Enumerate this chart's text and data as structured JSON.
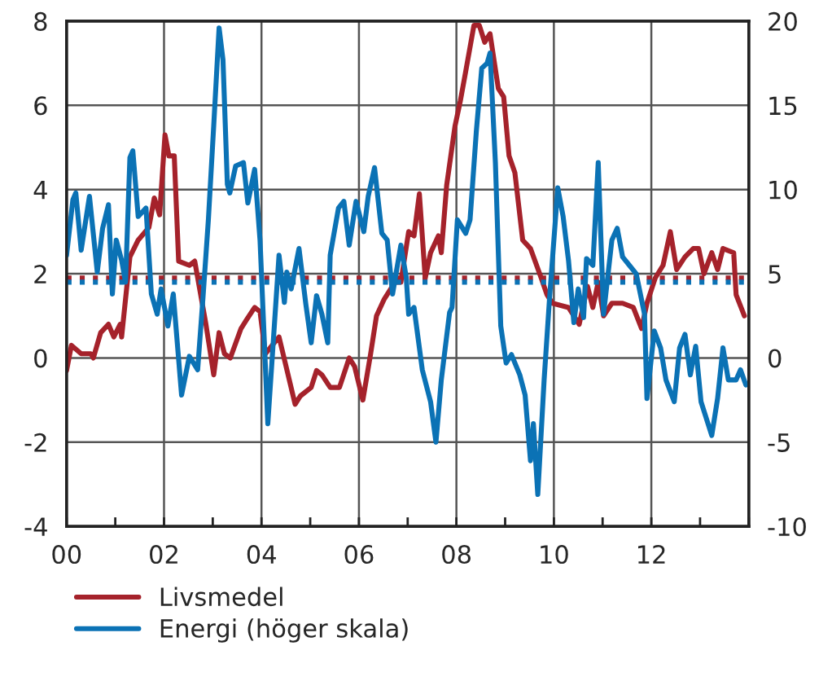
{
  "chart_data": {
    "type": "line",
    "series": [
      {
        "name": "Livsmedel",
        "color": "#a5222b",
        "x": [
          2000.0,
          2000.1,
          2000.3,
          2000.5,
          2000.55,
          2000.7,
          2000.86,
          2000.97,
          2001.1,
          2001.13,
          2001.3,
          2001.47,
          2001.69,
          2001.8,
          2001.91,
          2002.02,
          2002.1,
          2002.21,
          2002.3,
          2002.52,
          2002.63,
          2002.86,
          2003.02,
          2003.13,
          2003.24,
          2003.36,
          2003.58,
          2003.69,
          2003.86,
          2003.97,
          2004.08,
          2004.36,
          2004.69,
          2004.8,
          2005.02,
          2005.13,
          2005.24,
          2005.41,
          2005.6,
          2005.8,
          2005.91,
          2006.08,
          2006.24,
          2006.36,
          2006.52,
          2006.74,
          2006.86,
          2007.02,
          2007.13,
          2007.24,
          2007.36,
          2007.47,
          2007.63,
          2007.69,
          2007.8,
          2007.97,
          2008.08,
          2008.19,
          2008.36,
          2008.47,
          2008.58,
          2008.69,
          2008.86,
          2008.97,
          2009.08,
          2009.2,
          2009.36,
          2009.52,
          2009.74,
          2009.86,
          2009.97,
          2010.3,
          2010.52,
          2010.69,
          2010.8,
          2010.91,
          2011.02,
          2011.19,
          2011.41,
          2011.63,
          2011.8,
          2011.91,
          2012.08,
          2012.24,
          2012.39,
          2012.52,
          2012.69,
          2012.86,
          2012.97,
          2013.08,
          2013.24,
          2013.36,
          2013.47,
          2013.69,
          2013.74,
          2013.91
        ],
        "values": [
          -0.3,
          0.3,
          0.1,
          0.1,
          0,
          0.6,
          0.8,
          0.5,
          0.8,
          0.5,
          2.4,
          2.8,
          3.1,
          3.8,
          3.4,
          5.3,
          4.8,
          4.8,
          2.3,
          2.2,
          2.3,
          0.8,
          -0.4,
          0.6,
          0.1,
          0,
          0.7,
          0.9,
          1.2,
          1.1,
          0.1,
          0.5,
          -1.1,
          -0.9,
          -0.7,
          -0.3,
          -0.4,
          -0.7,
          -0.7,
          0,
          -0.2,
          -1,
          0.1,
          1,
          1.4,
          1.8,
          1.8,
          3,
          2.9,
          3.9,
          1.9,
          2.5,
          2.9,
          2.5,
          4.1,
          5.5,
          6.1,
          6.8,
          7.9,
          7.9,
          7.5,
          7.7,
          6.4,
          6.2,
          4.8,
          4.4,
          2.8,
          2.6,
          1.9,
          1.5,
          1.3,
          1.2,
          0.8,
          1.7,
          1.2,
          1.8,
          1,
          1.3,
          1.3,
          1.2,
          0.7,
          1.3,
          1.9,
          2.2,
          3,
          2.1,
          2.4,
          2.6,
          2.6,
          2,
          2.5,
          2.1,
          2.6,
          2.5,
          1.5,
          1
        ]
      },
      {
        "name": "Energi (höger skala)",
        "color": "#0b72b5",
        "axis": "y2",
        "x": [
          2000.0,
          2000.13,
          2000.19,
          2000.3,
          2000.47,
          2000.63,
          2000.74,
          2000.86,
          2000.94,
          2001.02,
          2001.13,
          2001.21,
          2001.3,
          2001.36,
          2001.47,
          2001.63,
          2001.74,
          2001.86,
          2001.94,
          2002.08,
          2002.19,
          2002.36,
          2002.52,
          2002.69,
          2002.8,
          2002.91,
          2003.02,
          2003.13,
          2003.21,
          2003.3,
          2003.35,
          2003.47,
          2003.63,
          2003.72,
          2003.86,
          2003.97,
          2004.13,
          2004.36,
          2004.47,
          2004.52,
          2004.61,
          2004.77,
          2004.91,
          2005.02,
          2005.13,
          2005.24,
          2005.36,
          2005.41,
          2005.58,
          2005.69,
          2005.8,
          2005.94,
          2006.1,
          2006.19,
          2006.32,
          2006.47,
          2006.58,
          2006.69,
          2006.86,
          2006.97,
          2007.02,
          2007.13,
          2007.3,
          2007.47,
          2007.58,
          2007.69,
          2007.86,
          2007.91,
          2008.02,
          2008.19,
          2008.28,
          2008.41,
          2008.52,
          2008.63,
          2008.69,
          2008.8,
          2008.91,
          2009.02,
          2009.13,
          2009.3,
          2009.41,
          2009.52,
          2009.58,
          2009.67,
          2009.8,
          2009.91,
          2010.08,
          2010.19,
          2010.3,
          2010.41,
          2010.5,
          2010.61,
          2010.67,
          2010.8,
          2010.91,
          2011.02,
          2011.19,
          2011.3,
          2011.41,
          2011.55,
          2011.69,
          2011.86,
          2011.91,
          2012.06,
          2012.19,
          2012.3,
          2012.47,
          2012.58,
          2012.69,
          2012.8,
          2012.91,
          2013.02,
          2013.24,
          2013.36,
          2013.47,
          2013.58,
          2013.74,
          2013.83,
          2013.94
        ],
        "values": [
          6.1,
          9.4,
          9.8,
          6.4,
          9.6,
          5.1,
          7.7,
          9.1,
          3.8,
          7,
          5.8,
          4.5,
          11.9,
          12.3,
          8.4,
          8.9,
          3.8,
          2.6,
          4.1,
          1.9,
          3.8,
          -2.2,
          0.1,
          -0.7,
          3.6,
          8.2,
          13.8,
          19.6,
          17.7,
          10.3,
          9.8,
          11.4,
          11.6,
          9.2,
          11.2,
          7,
          -3.9,
          6.1,
          3.3,
          5.1,
          4.1,
          6.5,
          3.2,
          0.9,
          3.7,
          2.6,
          0.9,
          6.1,
          8.9,
          9.3,
          6.7,
          9.3,
          7.5,
          9.6,
          11.3,
          7.4,
          7,
          3.8,
          6.7,
          4.8,
          2.6,
          3,
          -0.7,
          -2.6,
          -5,
          -1.3,
          2.7,
          3,
          8.2,
          7.4,
          8.2,
          13.5,
          17.2,
          17.5,
          18.1,
          11.6,
          1.9,
          -0.3,
          0.2,
          -1,
          -2.2,
          -6.1,
          -3.9,
          -8.1,
          -1.3,
          3.5,
          10.1,
          8.4,
          5.8,
          2.1,
          4.1,
          2.4,
          5.9,
          5.5,
          11.6,
          2.6,
          7,
          7.7,
          6,
          5.5,
          5,
          2.6,
          -2.4,
          1.6,
          0.6,
          -1.3,
          -2.6,
          0.6,
          1.4,
          -1,
          0.7,
          -2.6,
          -4.6,
          -2.4,
          0.6,
          -1.3,
          -1.3,
          -0.7,
          -1.6
        ]
      }
    ],
    "xlim": [
      2000,
      2014
    ],
    "xticks": [
      {
        "value": 2000,
        "label": "00"
      },
      {
        "value": 2001,
        "label": null
      },
      {
        "value": 2002,
        "label": "02"
      },
      {
        "value": 2003,
        "label": null
      },
      {
        "value": 2004,
        "label": "04"
      },
      {
        "value": 2005,
        "label": null
      },
      {
        "value": 2006,
        "label": "06"
      },
      {
        "value": 2007,
        "label": null
      },
      {
        "value": 2008,
        "label": "08"
      },
      {
        "value": 2009,
        "label": null
      },
      {
        "value": 2010,
        "label": "10"
      },
      {
        "value": 2011,
        "label": null
      },
      {
        "value": 2012,
        "label": "12"
      },
      {
        "value": 2013,
        "label": null
      },
      {
        "value": 2014,
        "label": null
      }
    ],
    "ylim": [
      -4,
      8
    ],
    "yticks": [
      -4,
      -2,
      0,
      2,
      4,
      6,
      8
    ],
    "y2lim": [
      -10,
      20
    ],
    "y2ticks": [
      -10,
      -5,
      0,
      5,
      10,
      15,
      20
    ],
    "ref_lines": [
      {
        "axis": "y",
        "value": 1.9,
        "label": null,
        "color": "#a5222b",
        "line_style": "dotted"
      },
      {
        "axis": "y2",
        "value": 4.5,
        "label": null,
        "color": "#0b72b5",
        "line_style": "dotted"
      }
    ],
    "grid": true,
    "legend": "bottom",
    "marker": "none",
    "line_style": "solid"
  }
}
